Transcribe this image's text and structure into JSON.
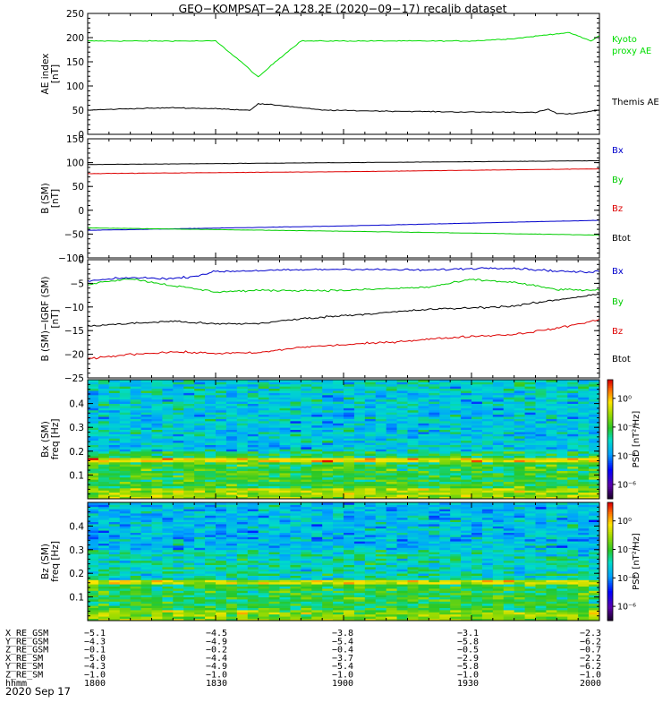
{
  "title": "GEO−KOMPSAT−2A 128.2E (2020−09−17) recalib dataset",
  "date_label": "2020 Sep 17",
  "chart_data": [
    {
      "type": "line",
      "panel": "ae",
      "ylabel": [
        "AE index",
        "[nT]"
      ],
      "ylim": [
        0,
        250
      ],
      "yticks": [
        0,
        50,
        100,
        150,
        200,
        250
      ],
      "x_ticks": [
        "1800",
        "1830",
        "1900",
        "1930",
        "2000"
      ],
      "series": [
        {
          "name": "Kyoto proxy AE",
          "legend": [
            "Kyoto",
            "proxy AE"
          ],
          "color": "#00dd00",
          "x": [
            0,
            10,
            20,
            30,
            36,
            40,
            44,
            50,
            60,
            70,
            80,
            90,
            100,
            110,
            113,
            118,
            120
          ],
          "y": [
            193,
            193,
            193,
            193,
            150,
            118,
            150,
            193,
            193,
            193,
            193,
            193,
            198,
            208,
            210,
            193,
            204
          ]
        },
        {
          "name": "Themis AE",
          "legend": [
            "Themis AE"
          ],
          "color": "#000000",
          "x": [
            0,
            10,
            20,
            30,
            38,
            40,
            45,
            55,
            70,
            90,
            100,
            105,
            108,
            110,
            113,
            120
          ],
          "y": [
            50,
            53,
            55,
            53,
            50,
            63,
            60,
            50,
            48,
            46,
            46,
            45,
            52,
            43,
            42,
            50
          ]
        }
      ]
    },
    {
      "type": "line",
      "panel": "b_sm",
      "ylabel": [
        "B (SM)",
        "[nT]"
      ],
      "ylim": [
        -100,
        150
      ],
      "yticks": [
        -100,
        -50,
        0,
        50,
        100,
        150
      ],
      "x_ticks": [
        "1800",
        "1830",
        "1900",
        "1930",
        "2000"
      ],
      "series": [
        {
          "name": "Bx",
          "color": "#0000cc",
          "x": [
            0,
            60,
            120
          ],
          "y": [
            -42,
            -33,
            -21
          ]
        },
        {
          "name": "By",
          "color": "#00cc00",
          "x": [
            0,
            60,
            120
          ],
          "y": [
            -37,
            -44,
            -52
          ]
        },
        {
          "name": "Bz",
          "color": "#dd0000",
          "x": [
            0,
            60,
            120
          ],
          "y": [
            77,
            81,
            87
          ]
        },
        {
          "name": "Btot",
          "color": "#000000",
          "x": [
            0,
            60,
            120
          ],
          "y": [
            96,
            100,
            104
          ]
        }
      ]
    },
    {
      "type": "line",
      "panel": "b_igrf",
      "ylabel": [
        "B (SM)−IGRF (SM)",
        "[nT]"
      ],
      "ylim": [
        -25,
        0
      ],
      "yticks": [
        -25,
        -20,
        -15,
        -10,
        -5,
        0
      ],
      "x_ticks": [
        "1800",
        "1830",
        "1900",
        "1930",
        "2000"
      ],
      "series": [
        {
          "name": "Bx",
          "color": "#0000cc",
          "x": [
            0,
            10,
            20,
            25,
            30,
            40,
            60,
            80,
            95,
            100,
            110,
            118,
            120
          ],
          "y": [
            -4.5,
            -3.8,
            -4,
            -3.5,
            -2.5,
            -2.3,
            -2.0,
            -2.2,
            -1.7,
            -1.8,
            -2.4,
            -2.7,
            -2.4
          ]
        },
        {
          "name": "By",
          "color": "#00cc00",
          "x": [
            0,
            5,
            10,
            20,
            30,
            40,
            60,
            80,
            90,
            100,
            110,
            120
          ],
          "y": [
            -5.2,
            -4.5,
            -4,
            -5.5,
            -6.8,
            -6.5,
            -6.5,
            -5.8,
            -4.2,
            -4.8,
            -6.3,
            -6.5
          ]
        },
        {
          "name": "Bz",
          "color": "#dd0000",
          "x": [
            0,
            10,
            20,
            30,
            40,
            50,
            60,
            70,
            80,
            90,
            100,
            110,
            120
          ],
          "y": [
            -21,
            -20,
            -19.5,
            -19.8,
            -19.7,
            -18.5,
            -18,
            -17.5,
            -16.8,
            -16.2,
            -15.8,
            -14.5,
            -12.7
          ]
        },
        {
          "name": "Btot",
          "color": "#000000",
          "x": [
            0,
            10,
            20,
            30,
            40,
            50,
            60,
            70,
            80,
            90,
            100,
            110,
            120
          ],
          "y": [
            -14,
            -13.5,
            -13,
            -13.6,
            -13.5,
            -12.5,
            -11.8,
            -11.2,
            -10.5,
            -10.2,
            -9.8,
            -8.5,
            -7.2
          ]
        }
      ]
    },
    {
      "type": "heatmap",
      "panel": "bx_spec",
      "ylabel": [
        "Bx (SM)",
        "freq [Hz]"
      ],
      "ylim": [
        0,
        0.5
      ],
      "yticks": [
        0.1,
        0.2,
        0.3,
        0.4
      ],
      "x_ticks": [
        "1800",
        "1830",
        "1900",
        "1930",
        "2000"
      ],
      "colorbar": {
        "label": "PSD [nT²/Hz]",
        "ticks": [
          "10⁰",
          "10⁻²",
          "10⁻⁴",
          "10⁻⁶"
        ],
        "log_range": [
          -7,
          1.3
        ]
      },
      "bands": [
        {
          "f": [
            0.45,
            0.5
          ],
          "logpsd": -3.0
        },
        {
          "f": [
            0.2,
            0.45
          ],
          "logpsd": -3.2
        },
        {
          "f": [
            0.17,
            0.2
          ],
          "logpsd": -2.3
        },
        {
          "f": [
            0.155,
            0.17
          ],
          "logpsd": -0.3
        },
        {
          "f": [
            0.05,
            0.155
          ],
          "logpsd": -2.0
        },
        {
          "f": [
            0.0,
            0.05
          ],
          "logpsd": -1.0
        }
      ]
    },
    {
      "type": "heatmap",
      "panel": "bz_spec",
      "ylabel": [
        "Bz (SM)",
        "freq [Hz]"
      ],
      "ylim": [
        0,
        0.5
      ],
      "yticks": [
        0.1,
        0.2,
        0.3,
        0.4
      ],
      "x_ticks": [
        "1800",
        "1830",
        "1900",
        "1930",
        "2000"
      ],
      "colorbar": {
        "label": "PSD [nT²/Hz]",
        "ticks": [
          "10⁰",
          "10⁻²",
          "10⁻⁴",
          "10⁻⁶"
        ],
        "log_range": [
          -7,
          1.3
        ]
      },
      "bands": [
        {
          "f": [
            0.3,
            0.5
          ],
          "logpsd": -3.4
        },
        {
          "f": [
            0.17,
            0.3
          ],
          "logpsd": -2.8
        },
        {
          "f": [
            0.155,
            0.17
          ],
          "logpsd": -0.6
        },
        {
          "f": [
            0.05,
            0.155
          ],
          "logpsd": -2.1
        },
        {
          "f": [
            0.0,
            0.05
          ],
          "logpsd": -1.2
        }
      ]
    }
  ],
  "ephemeris": {
    "rows": [
      {
        "label": "X_RE_GSM",
        "values": [
          "−5.1",
          "−4.5",
          "−3.8",
          "−3.1",
          "−2.3"
        ]
      },
      {
        "label": "Y_RE_GSM",
        "values": [
          "−4.3",
          "−4.9",
          "−5.4",
          "−5.8",
          "−6.2"
        ]
      },
      {
        "label": "Z_RE_GSM",
        "values": [
          "−0.1",
          "−0.2",
          "−0.4",
          "−0.5",
          "−0.7"
        ]
      },
      {
        "label": "X_RE_SM",
        "values": [
          "−5.0",
          "−4.4",
          "−3.7",
          "−2.9",
          "−2.2"
        ]
      },
      {
        "label": "Y_RE_SM",
        "values": [
          "−4.3",
          "−4.9",
          "−5.4",
          "−5.8",
          "−6.2"
        ]
      },
      {
        "label": "Z_RE_SM",
        "values": [
          "−1.0",
          "−1.0",
          "−1.0",
          "−1.0",
          "−1.0"
        ]
      },
      {
        "label": "hhmm",
        "values": [
          "1800",
          "1830",
          "1900",
          "1930",
          "2000"
        ]
      }
    ]
  }
}
